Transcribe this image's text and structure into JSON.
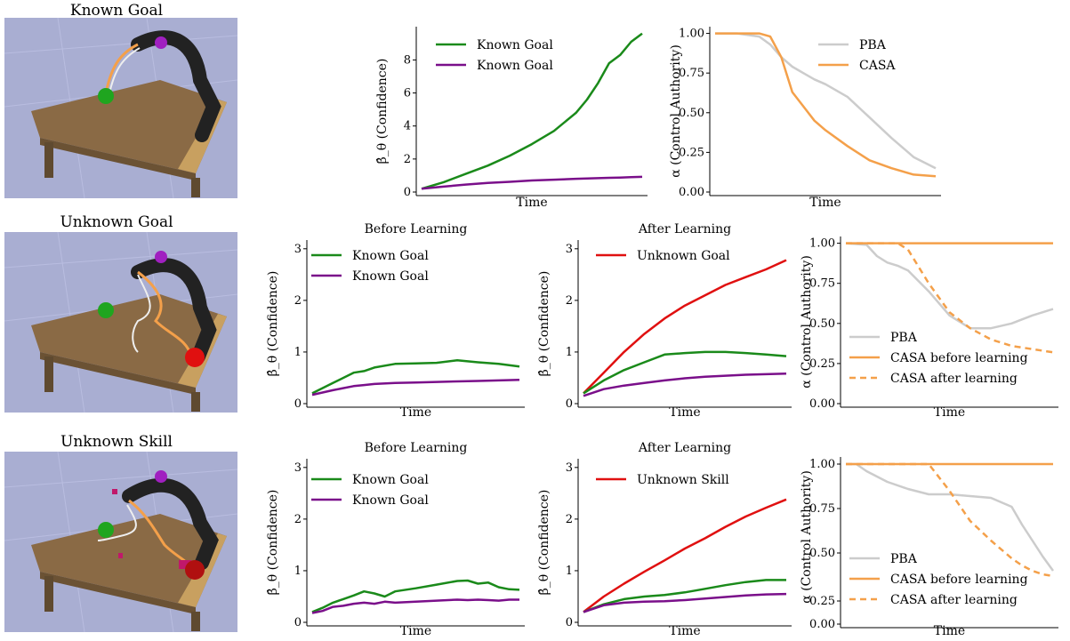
{
  "rows": [
    {
      "title": "Known Goal"
    },
    {
      "title": "Unknown Goal"
    },
    {
      "title": "Unknown Skill"
    }
  ],
  "colors": {
    "known_goal": "#1a8a1a",
    "known_goal_2": "#7a0f8a",
    "unknown": "#e01010",
    "pba": "#cccccc",
    "casa": "#f4a04a",
    "table_top": "#8a6a45",
    "background": "#a9aed2"
  },
  "chart_data": [
    {
      "id": "r1-confidence",
      "type": "line",
      "title": "",
      "xlabel": "Time",
      "ylabel": "β̂_θ (Confidence)",
      "ylim": [
        0,
        9.8
      ],
      "yticks": [
        0,
        2,
        4,
        6,
        8
      ],
      "ytick_labels": [
        "0",
        "2",
        "4",
        "6",
        "8"
      ],
      "x": [
        0,
        0.1,
        0.2,
        0.3,
        0.4,
        0.5,
        0.6,
        0.7,
        0.75,
        0.8,
        0.85,
        0.9,
        0.95,
        1
      ],
      "series": [
        {
          "name": "Known Goal",
          "color": "#1a8a1a",
          "dash": "",
          "values": [
            0.2,
            0.6,
            1.1,
            1.6,
            2.2,
            2.9,
            3.7,
            4.8,
            5.6,
            6.6,
            7.8,
            8.3,
            9.1,
            9.6
          ]
        },
        {
          "name": "Known Goal",
          "color": "#7a0f8a",
          "dash": "",
          "values": [
            0.2,
            0.33,
            0.45,
            0.55,
            0.62,
            0.7,
            0.75,
            0.8,
            0.82,
            0.84,
            0.86,
            0.88,
            0.9,
            0.92
          ]
        }
      ],
      "legend": "top-left"
    },
    {
      "id": "r1-authority",
      "type": "line",
      "title": "",
      "xlabel": "Time",
      "ylabel": "α (Control Authority)",
      "ylim": [
        0,
        1.02
      ],
      "yticks": [
        0,
        0.25,
        0.5,
        0.75,
        1
      ],
      "ytick_labels": [
        "0.00",
        "0.25",
        "0.50",
        "0.75",
        "1.00"
      ],
      "x": [
        0,
        0.1,
        0.2,
        0.25,
        0.3,
        0.35,
        0.4,
        0.45,
        0.5,
        0.6,
        0.7,
        0.8,
        0.9,
        1
      ],
      "series": [
        {
          "name": "PBA",
          "color": "#cccccc",
          "dash": "",
          "values": [
            1,
            1,
            0.98,
            0.93,
            0.85,
            0.79,
            0.75,
            0.71,
            0.68,
            0.6,
            0.47,
            0.34,
            0.22,
            0.15
          ]
        },
        {
          "name": "CASA",
          "color": "#f4a04a",
          "dash": "",
          "values": [
            1,
            1,
            1,
            0.98,
            0.85,
            0.63,
            0.54,
            0.45,
            0.39,
            0.29,
            0.2,
            0.15,
            0.11,
            0.1
          ]
        }
      ],
      "legend": "top-right"
    },
    {
      "id": "r2-before",
      "type": "line",
      "title": "Before Learning",
      "xlabel": "Time",
      "ylabel": "β̂_θ (Confidence)",
      "ylim": [
        0,
        3.1
      ],
      "yticks": [
        0,
        1,
        2,
        3
      ],
      "ytick_labels": [
        "0",
        "1",
        "2",
        "3"
      ],
      "x": [
        0,
        0.1,
        0.2,
        0.25,
        0.3,
        0.4,
        0.5,
        0.6,
        0.7,
        0.8,
        0.9,
        1
      ],
      "series": [
        {
          "name": "Known Goal",
          "color": "#1a8a1a",
          "dash": "",
          "values": [
            0.2,
            0.4,
            0.6,
            0.63,
            0.7,
            0.77,
            0.78,
            0.79,
            0.84,
            0.8,
            0.77,
            0.72
          ]
        },
        {
          "name": "Known Goal",
          "color": "#7a0f8a",
          "dash": "",
          "values": [
            0.17,
            0.26,
            0.34,
            0.36,
            0.38,
            0.4,
            0.41,
            0.42,
            0.43,
            0.44,
            0.45,
            0.46
          ]
        }
      ],
      "legend": "top-left"
    },
    {
      "id": "r2-after",
      "type": "line",
      "title": "After Learning",
      "xlabel": "Time",
      "ylabel": "β̂_θ (Confidence)",
      "ylim": [
        0,
        3.1
      ],
      "yticks": [
        0,
        1,
        2,
        3
      ],
      "ytick_labels": [
        "0",
        "1",
        "2",
        "3"
      ],
      "x": [
        0,
        0.1,
        0.2,
        0.3,
        0.4,
        0.5,
        0.6,
        0.7,
        0.8,
        0.9,
        1
      ],
      "series": [
        {
          "name": "Unknown Goal",
          "color": "#e01010",
          "dash": "",
          "values": [
            0.2,
            0.6,
            1.0,
            1.35,
            1.65,
            1.9,
            2.1,
            2.3,
            2.45,
            2.6,
            2.78
          ]
        },
        {
          "name": "",
          "color": "#1a8a1a",
          "dash": "",
          "values": [
            0.2,
            0.45,
            0.65,
            0.8,
            0.95,
            0.98,
            1.0,
            1.0,
            0.98,
            0.95,
            0.92
          ]
        },
        {
          "name": "",
          "color": "#7a0f8a",
          "dash": "",
          "values": [
            0.15,
            0.28,
            0.35,
            0.4,
            0.45,
            0.49,
            0.52,
            0.54,
            0.56,
            0.57,
            0.58
          ]
        }
      ],
      "legend": "top-left"
    },
    {
      "id": "r2-authority",
      "type": "line",
      "title": "",
      "xlabel": "Time",
      "ylabel": "α (Control Authority)",
      "ylim": [
        0,
        1.02
      ],
      "yticks": [
        0,
        0.25,
        0.5,
        0.75,
        1
      ],
      "ytick_labels": [
        "0.00",
        "0.25",
        "0.50",
        "0.75",
        "1.00"
      ],
      "x": [
        0,
        0.1,
        0.15,
        0.2,
        0.25,
        0.3,
        0.4,
        0.5,
        0.6,
        0.7,
        0.8,
        0.9,
        1
      ],
      "series": [
        {
          "name": "PBA",
          "color": "#cccccc",
          "dash": "",
          "values": [
            1,
            0.99,
            0.92,
            0.88,
            0.86,
            0.83,
            0.7,
            0.55,
            0.47,
            0.47,
            0.5,
            0.55,
            0.59
          ]
        },
        {
          "name": "CASA before learning",
          "color": "#f4a04a",
          "dash": "",
          "values": [
            1,
            1,
            1,
            1,
            1,
            1,
            1,
            1,
            1,
            1,
            1,
            1,
            1
          ]
        },
        {
          "name": "CASA after learning",
          "color": "#f4a04a",
          "dash": "7,5",
          "values": [
            1,
            1,
            1,
            1,
            1,
            0.96,
            0.75,
            0.57,
            0.47,
            0.4,
            0.36,
            0.34,
            0.32
          ]
        }
      ],
      "legend": "bottom-left"
    },
    {
      "id": "r3-before",
      "type": "line",
      "title": "Before Learning",
      "xlabel": "Time",
      "ylabel": "β̂_θ (Confidence)",
      "ylim": [
        0,
        3.1
      ],
      "yticks": [
        0,
        1,
        2,
        3
      ],
      "ytick_labels": [
        "0",
        "1",
        "2",
        "3"
      ],
      "x": [
        0,
        0.05,
        0.1,
        0.15,
        0.2,
        0.25,
        0.3,
        0.35,
        0.4,
        0.5,
        0.6,
        0.7,
        0.75,
        0.8,
        0.85,
        0.9,
        0.95,
        1
      ],
      "series": [
        {
          "name": "Known Goal",
          "color": "#1a8a1a",
          "dash": "",
          "values": [
            0.2,
            0.28,
            0.38,
            0.45,
            0.52,
            0.6,
            0.56,
            0.5,
            0.6,
            0.66,
            0.73,
            0.8,
            0.81,
            0.75,
            0.77,
            0.68,
            0.64,
            0.63
          ]
        },
        {
          "name": "Known Goal",
          "color": "#7a0f8a",
          "dash": "",
          "values": [
            0.18,
            0.22,
            0.3,
            0.32,
            0.36,
            0.38,
            0.36,
            0.4,
            0.38,
            0.4,
            0.42,
            0.44,
            0.43,
            0.44,
            0.43,
            0.42,
            0.44,
            0.44
          ]
        }
      ],
      "legend": "top-left"
    },
    {
      "id": "r3-after",
      "type": "line",
      "title": "After Learning",
      "xlabel": "Time",
      "ylabel": "β̂_θ (Confidence)",
      "ylim": [
        0,
        3.1
      ],
      "yticks": [
        0,
        1,
        2,
        3
      ],
      "ytick_labels": [
        "0",
        "1",
        "2",
        "3"
      ],
      "x": [
        0,
        0.1,
        0.2,
        0.3,
        0.4,
        0.5,
        0.6,
        0.7,
        0.8,
        0.9,
        1
      ],
      "series": [
        {
          "name": "Unknown Skill",
          "color": "#e01010",
          "dash": "",
          "values": [
            0.2,
            0.5,
            0.75,
            0.98,
            1.2,
            1.43,
            1.63,
            1.85,
            2.05,
            2.22,
            2.38
          ]
        },
        {
          "name": "",
          "color": "#1a8a1a",
          "dash": "",
          "values": [
            0.2,
            0.35,
            0.45,
            0.5,
            0.53,
            0.58,
            0.65,
            0.72,
            0.78,
            0.82,
            0.82
          ]
        },
        {
          "name": "",
          "color": "#7a0f8a",
          "dash": "",
          "values": [
            0.2,
            0.33,
            0.38,
            0.4,
            0.41,
            0.43,
            0.46,
            0.49,
            0.52,
            0.54,
            0.55
          ]
        }
      ],
      "legend": "top-left"
    },
    {
      "id": "r3-authority",
      "type": "line",
      "title": "",
      "xlabel": "Time",
      "ylabel": "α (Control Authority)",
      "ylim": [
        0.36,
        1.02
      ],
      "yticks": [
        0.5,
        0.75,
        1
      ],
      "ytick_labels": [
        "0.50",
        "0.75",
        "1.00"
      ],
      "extra_ticks": [
        {
          "value": 0.25,
          "label": "0.25"
        },
        {
          "value": 0,
          "label": "0.00"
        }
      ],
      "x": [
        0,
        0.05,
        0.1,
        0.2,
        0.3,
        0.4,
        0.5,
        0.6,
        0.7,
        0.8,
        0.85,
        0.9,
        0.95,
        1
      ],
      "series": [
        {
          "name": "PBA",
          "color": "#cccccc",
          "dash": "",
          "values": [
            1,
            1,
            0.96,
            0.9,
            0.86,
            0.83,
            0.83,
            0.82,
            0.81,
            0.76,
            0.66,
            0.57,
            0.48,
            0.4
          ]
        },
        {
          "name": "CASA before learning",
          "color": "#f4a04a",
          "dash": "",
          "values": [
            1,
            1,
            1,
            1,
            1,
            1,
            1,
            1,
            1,
            1,
            1,
            1,
            1,
            1
          ]
        },
        {
          "name": "CASA after learning",
          "color": "#f4a04a",
          "dash": "7,5",
          "values": [
            1,
            1,
            1,
            1,
            1,
            1,
            0.85,
            0.68,
            0.57,
            0.47,
            0.43,
            0.4,
            0.38,
            0.37
          ]
        }
      ],
      "legend": "bottom-left"
    }
  ]
}
